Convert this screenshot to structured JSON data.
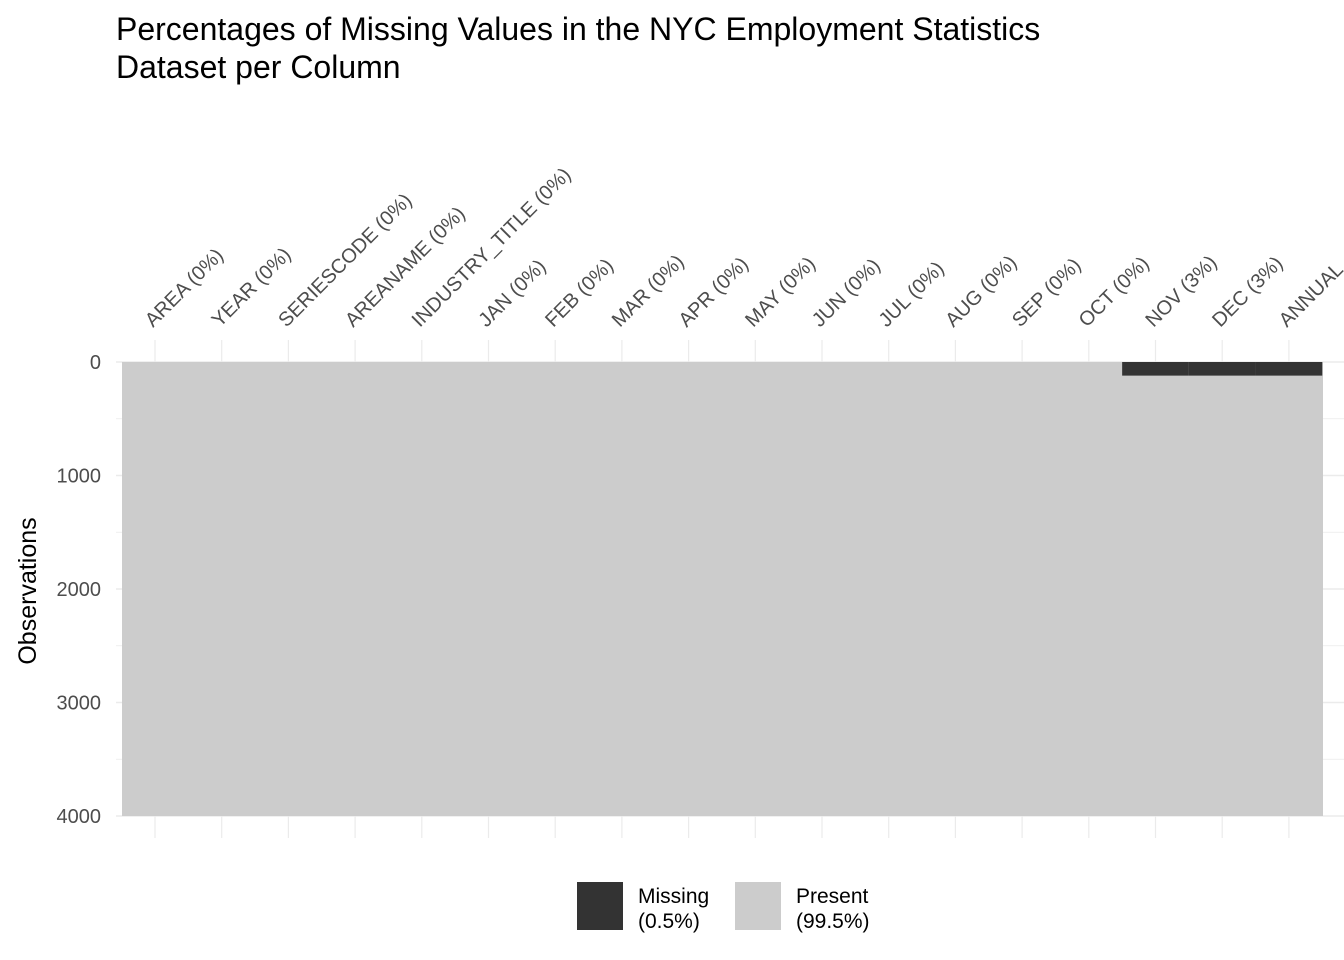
{
  "title_lines": [
    "Percentages of Missing Values in the NYC Employment Statistics",
    "Dataset per Column"
  ],
  "chart_data": {
    "type": "heatmap",
    "title": "Percentages of Missing Values in the NYC Employment Statistics Dataset per Column",
    "ylabel": "Observations",
    "xlabel": "",
    "y_ticks": [
      0,
      1000,
      2000,
      3000,
      4000
    ],
    "ylim": [
      0,
      4000
    ],
    "n_rows": 4000,
    "columns": [
      {
        "name": "AREA",
        "label": "AREA (0%)",
        "missing_pct": 0
      },
      {
        "name": "YEAR",
        "label": "YEAR (0%)",
        "missing_pct": 0
      },
      {
        "name": "SERIESCODE",
        "label": "SERIESCODE (0%)",
        "missing_pct": 0
      },
      {
        "name": "AREANAME",
        "label": "AREANAME (0%)",
        "missing_pct": 0
      },
      {
        "name": "INDUSTRY_TITLE",
        "label": "INDUSTRY_TITLE (0%)",
        "missing_pct": 0
      },
      {
        "name": "JAN",
        "label": "JAN (0%)",
        "missing_pct": 0
      },
      {
        "name": "FEB",
        "label": "FEB (0%)",
        "missing_pct": 0
      },
      {
        "name": "MAR",
        "label": "MAR (0%)",
        "missing_pct": 0
      },
      {
        "name": "APR",
        "label": "APR (0%)",
        "missing_pct": 0
      },
      {
        "name": "MAY",
        "label": "MAY (0%)",
        "missing_pct": 0
      },
      {
        "name": "JUN",
        "label": "JUN (0%)",
        "missing_pct": 0
      },
      {
        "name": "JUL",
        "label": "JUL (0%)",
        "missing_pct": 0
      },
      {
        "name": "AUG",
        "label": "AUG (0%)",
        "missing_pct": 0
      },
      {
        "name": "SEP",
        "label": "SEP (0%)",
        "missing_pct": 0
      },
      {
        "name": "OCT",
        "label": "OCT (0%)",
        "missing_pct": 0
      },
      {
        "name": "NOV",
        "label": "NOV (3%)",
        "missing_pct": 3,
        "missing_rows": [
          0,
          120
        ]
      },
      {
        "name": "DEC",
        "label": "DEC (3%)",
        "missing_pct": 3,
        "missing_rows": [
          0,
          120
        ]
      },
      {
        "name": "ANNUAL",
        "label": "ANNUAL",
        "missing_pct": 3,
        "missing_rows": [
          0,
          120
        ]
      }
    ],
    "legend": [
      {
        "label_line1": "Missing",
        "label_line2": "(0.5%)",
        "color": "#333333"
      },
      {
        "label_line1": "Present",
        "label_line2": "(99.5%)",
        "color": "#cccccc"
      }
    ],
    "legend_position": "bottom",
    "grid": true,
    "colors": {
      "missing": "#333333",
      "present": "#cccccc",
      "grid": "#ebebeb"
    }
  }
}
